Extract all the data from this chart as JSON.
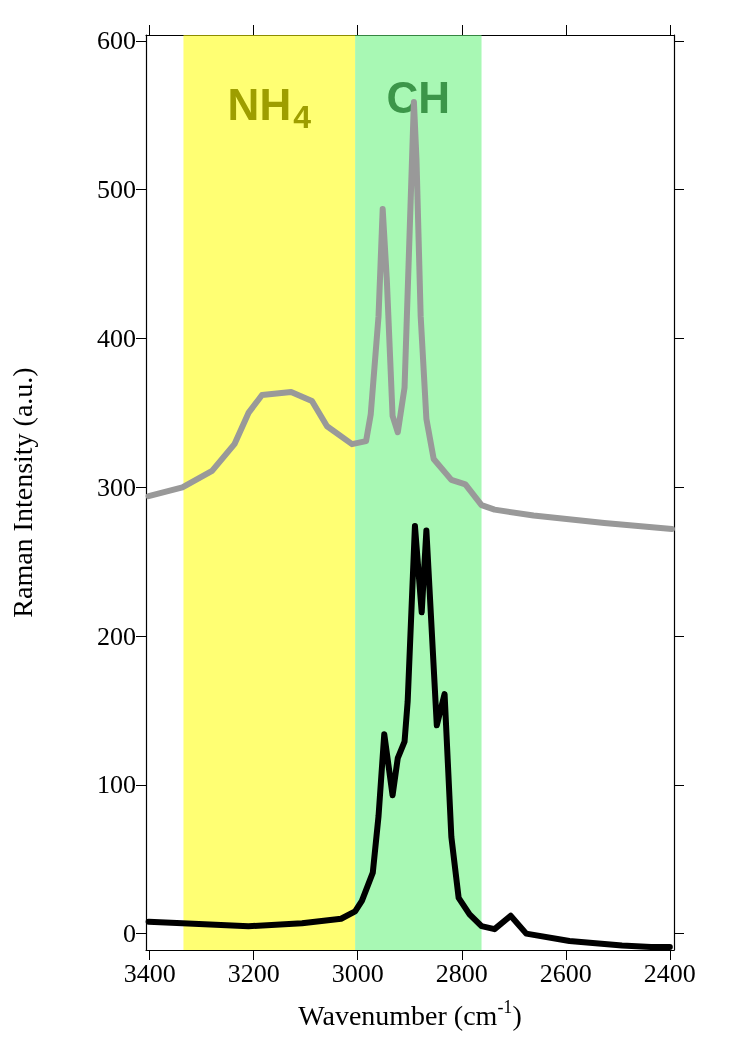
{
  "chart_data": {
    "type": "line",
    "xlabel": "Wavenumber (cm$^{-1}$)",
    "ylabel": "Raman Intensity (a.u.)",
    "xlim": [
      3407,
      2392
    ],
    "xticks": [
      3400,
      3200,
      3000,
      2800,
      2600,
      2400
    ],
    "ylim": [
      -11,
      604
    ],
    "yticks": [
      0,
      100,
      200,
      300,
      400,
      500,
      600
    ],
    "grid": false,
    "marker": "none",
    "line_style": "solid",
    "bands": [
      {
        "axis": "x",
        "from": 3335,
        "to": 3005,
        "label": "NH$_{4}$",
        "color": "#ffff00"
      },
      {
        "axis": "x",
        "from": 3005,
        "to": 2762,
        "label": "CH",
        "color": "#60f276"
      }
    ],
    "series": [
      {
        "color": "#999999",
        "x": [
          3402,
          3337,
          3280,
          3237,
          3210,
          3184,
          3128,
          3088,
          3059,
          3011,
          2984,
          2975,
          2960,
          2952,
          2944,
          2933,
          2923,
          2910,
          2901,
          2892,
          2887,
          2879,
          2868,
          2854,
          2820,
          2793,
          2762,
          2737,
          2662,
          2526,
          2396
        ],
        "values": [
          294,
          300,
          311,
          329,
          350,
          362,
          364,
          358,
          341,
          329,
          331,
          349,
          415,
          487,
          439,
          348,
          337,
          367,
          463,
          559,
          520,
          415,
          346,
          319,
          305,
          302,
          288,
          285,
          281,
          276,
          272
        ]
      },
      {
        "color": "#000000",
        "x": [
          3402,
          3337,
          3210,
          3107,
          3032,
          3005,
          2992,
          2971,
          2960,
          2949,
          2933,
          2923,
          2910,
          2904,
          2890,
          2877,
          2868,
          2848,
          2833,
          2820,
          2806,
          2785,
          2762,
          2737,
          2706,
          2676,
          2593,
          2492,
          2436,
          2400
        ],
        "values": [
          8,
          7,
          5,
          7,
          10,
          15,
          22,
          41,
          79,
          134,
          93,
          118,
          129,
          156,
          274,
          216,
          271,
          140,
          161,
          65,
          24,
          13,
          5,
          3,
          12,
          0,
          -5,
          -8,
          -9,
          -9
        ]
      }
    ]
  }
}
